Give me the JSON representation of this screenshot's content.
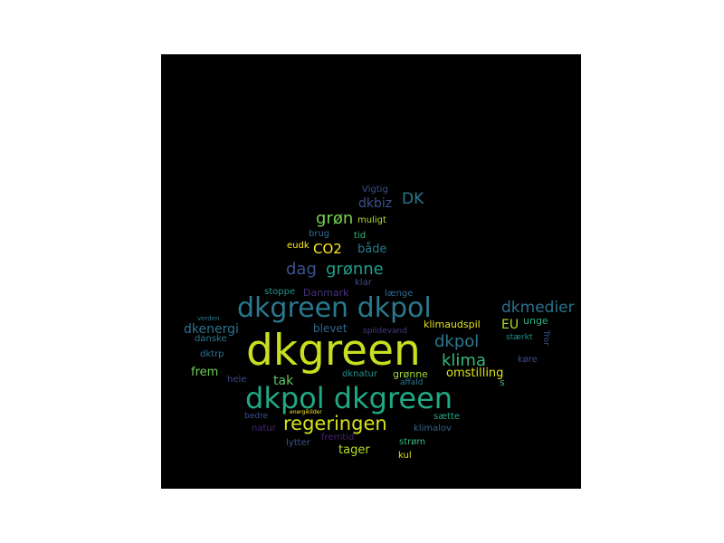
{
  "wordcloud": {
    "background": "#000000",
    "words": [
      {
        "text": "dkgreen",
        "color": "#c8df1f"
      },
      {
        "text": "dkgreen dkpol",
        "color": "#2a788e"
      },
      {
        "text": "dkpol dkgreen",
        "color": "#22a884"
      },
      {
        "text": "regeringen",
        "color": "#d8e219"
      },
      {
        "text": "dkmedier",
        "color": "#2c718e"
      },
      {
        "text": "dag",
        "color": "#3b528b"
      },
      {
        "text": "grønne",
        "color": "#1f9e89"
      },
      {
        "text": "dkpol",
        "color": "#2a788e"
      },
      {
        "text": "klima",
        "color": "#35b779"
      },
      {
        "text": "grøn",
        "color": "#7ad151"
      },
      {
        "text": "DK",
        "color": "#2a788e"
      },
      {
        "text": "dkenergi",
        "color": "#2c718e"
      },
      {
        "text": "CO2",
        "color": "#fde725"
      },
      {
        "text": "dkbiz",
        "color": "#3b528b"
      },
      {
        "text": "EU",
        "color": "#b5de2b"
      },
      {
        "text": "tak",
        "color": "#5ec962"
      },
      {
        "text": "frem",
        "color": "#6ece58"
      },
      {
        "text": "tager",
        "color": "#b5de2b"
      },
      {
        "text": "omstilling",
        "color": "#dde318"
      },
      {
        "text": "både",
        "color": "#2a788e"
      },
      {
        "text": "blevet",
        "color": "#31688e"
      },
      {
        "text": "Danmark",
        "color": "#46327e"
      },
      {
        "text": "grønne",
        "color": "#a0da39"
      },
      {
        "text": "klimaudspil",
        "color": "#e5e419"
      },
      {
        "text": "unge",
        "color": "#2ab07f"
      },
      {
        "text": "dknatur",
        "color": "#21918c"
      },
      {
        "text": "dktrp",
        "color": "#2c718e"
      },
      {
        "text": "danske",
        "color": "#2a788e"
      },
      {
        "text": "brug",
        "color": "#31688e"
      },
      {
        "text": "tid",
        "color": "#35b779"
      },
      {
        "text": "muligt",
        "color": "#b5de2b"
      },
      {
        "text": "eudk",
        "color": "#fde725"
      },
      {
        "text": "Vigtig",
        "color": "#3b528b"
      },
      {
        "text": "stoppe",
        "color": "#21918c"
      },
      {
        "text": "klar",
        "color": "#3e4a89"
      },
      {
        "text": "længe",
        "color": "#31688e"
      },
      {
        "text": "verden",
        "color": "#2a788e"
      },
      {
        "text": "spildevand",
        "color": "#443983"
      },
      {
        "text": "stærkt",
        "color": "#21918c"
      },
      {
        "text": "køre",
        "color": "#3e4a89"
      },
      {
        "text": "Tror",
        "color": "#3b528b"
      },
      {
        "text": "hele",
        "color": "#3e4a89"
      },
      {
        "text": "affald",
        "color": "#2a788e"
      },
      {
        "text": "s",
        "color": "#35b779"
      },
      {
        "text": "bedre",
        "color": "#3b528b"
      },
      {
        "text": "energikilder",
        "color": "#fde725"
      },
      {
        "text": "sætte",
        "color": "#20a386"
      },
      {
        "text": "natur",
        "color": "#482677"
      },
      {
        "text": "klimalov",
        "color": "#33638d"
      },
      {
        "text": "fremtid",
        "color": "#481f70"
      },
      {
        "text": "lytter",
        "color": "#3b528b"
      },
      {
        "text": "strøm",
        "color": "#35b779"
      },
      {
        "text": "kul",
        "color": "#dde318"
      }
    ]
  }
}
